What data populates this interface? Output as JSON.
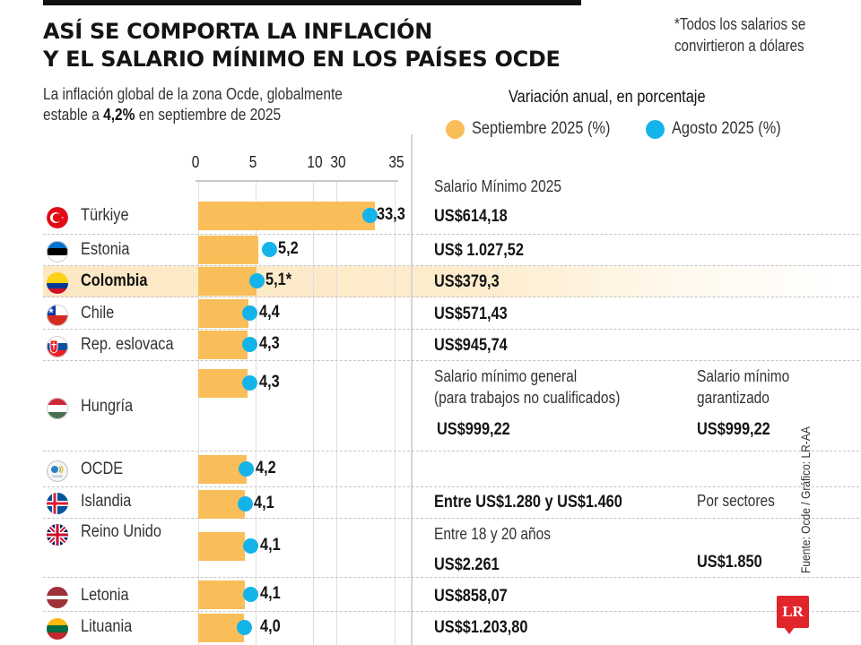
{
  "header": {
    "title_line1": "ASÍ SE COMPORTA LA INFLACIÓN",
    "title_line2": "Y EL SALARIO MÍNIMO EN LOS PAÍSES OCDE",
    "subtitle_line1": "La inflación global de la zona Ocde, globalmente",
    "subtitle_line2_pre": "estable a ",
    "subtitle_line2_bold": "4,2%",
    "subtitle_line2_post": " en septiembre de 2025",
    "note_line1": "*Todos los salarios se",
    "note_line2": "convirtieron a dólares"
  },
  "colors": {
    "september": "#f9be59",
    "august": "#14b4ea",
    "highlight": "#fde8c4",
    "logo": "#e0262b"
  },
  "salary_header": "Salario Mínimo 2025",
  "hungary_labels": {
    "general_line1": "Salario mínimo general",
    "general_line2": "(para trabajos no cualificados)",
    "general_value": "US$999,22",
    "guaranteed_line1": "Salario mínimo",
    "guaranteed_line2": "garantizado",
    "guaranteed_value": "US$999,22"
  },
  "iceland_extra": "Por sectores",
  "uk_labels": {
    "age_label": "Entre 18 y 20 años",
    "value_main": "US$2.261",
    "value_right": "US$1.850"
  },
  "footer": {
    "source": "Fuente: Ocde  / Gráfico: LR-AA",
    "logo": "LR"
  },
  "chart_data": {
    "type": "bar",
    "title": "Variación anual, en porcentaje",
    "xlabel": "",
    "ylabel": "",
    "axis_ticks": [
      "0",
      "5",
      "10",
      "30",
      "35"
    ],
    "axis_break": [
      10,
      30
    ],
    "xlim": [
      0,
      35
    ],
    "legend": [
      {
        "name": "Septiembre 2025 (%)",
        "mark": "bar",
        "color": "#f9be59"
      },
      {
        "name": "Agosto 2025 (%)",
        "mark": "dot",
        "color": "#14b4ea"
      }
    ],
    "legend_position": "top",
    "categories": [
      "Türkiye",
      "Estonia",
      "Colombia",
      "Chile",
      "Rep. eslovaca",
      "Hungría",
      "OCDE",
      "Islandia",
      "Reino Unido",
      "Letonia",
      "Lituania"
    ],
    "series": [
      {
        "name": "Septiembre 2025 (%)",
        "values": [
          33.3,
          5.2,
          5.1,
          4.4,
          4.3,
          4.3,
          4.2,
          4.1,
          4.1,
          4.1,
          4.0
        ]
      },
      {
        "name": "Agosto 2025 (%)",
        "values": [
          32.9,
          6.2,
          5.1,
          4.5,
          4.5,
          4.5,
          4.2,
          4.1,
          4.6,
          4.6,
          4.0
        ]
      }
    ],
    "data_labels": [
      "33,3",
      "5,2",
      "5,1*",
      "4,4",
      "4,3",
      "4,3",
      "4,2",
      "4,1",
      "4,1",
      "4,1",
      "4,0"
    ],
    "highlighted": "Colombia"
  },
  "rows": [
    {
      "country": "Türkiye",
      "flag": "turkey",
      "label": "33,3",
      "wage": "US$614,18"
    },
    {
      "country": "Estonia",
      "flag": "estonia",
      "label": "5,2",
      "wage": "US$ 1.027,52"
    },
    {
      "country": "Colombia",
      "flag": "colombia",
      "label": "5,1*",
      "wage": "US$379,3",
      "bold": true
    },
    {
      "country": "Chile",
      "flag": "chile",
      "label": "4,4",
      "wage": "US$571,43"
    },
    {
      "country": "Rep. eslovaca",
      "flag": "slovakia",
      "label": "4,3",
      "wage": "US$945,74"
    },
    {
      "country": "Hungría",
      "flag": "hungary",
      "label": "4,3",
      "wage": ""
    },
    {
      "country": "OCDE",
      "flag": "oecd",
      "label": "4,2",
      "wage": ""
    },
    {
      "country": "Islandia",
      "flag": "iceland",
      "label": "4,1",
      "wage": "Entre US$1.280 y US$1.460"
    },
    {
      "country": "Reino Unido",
      "flag": "uk",
      "label": "4,1",
      "wage": ""
    },
    {
      "country": "Letonia",
      "flag": "latvia",
      "label": "4,1",
      "wage": "US$858,07"
    },
    {
      "country": "Lituania",
      "flag": "lithuania",
      "label": "4,0",
      "wage": "US$$1.203,80"
    }
  ]
}
